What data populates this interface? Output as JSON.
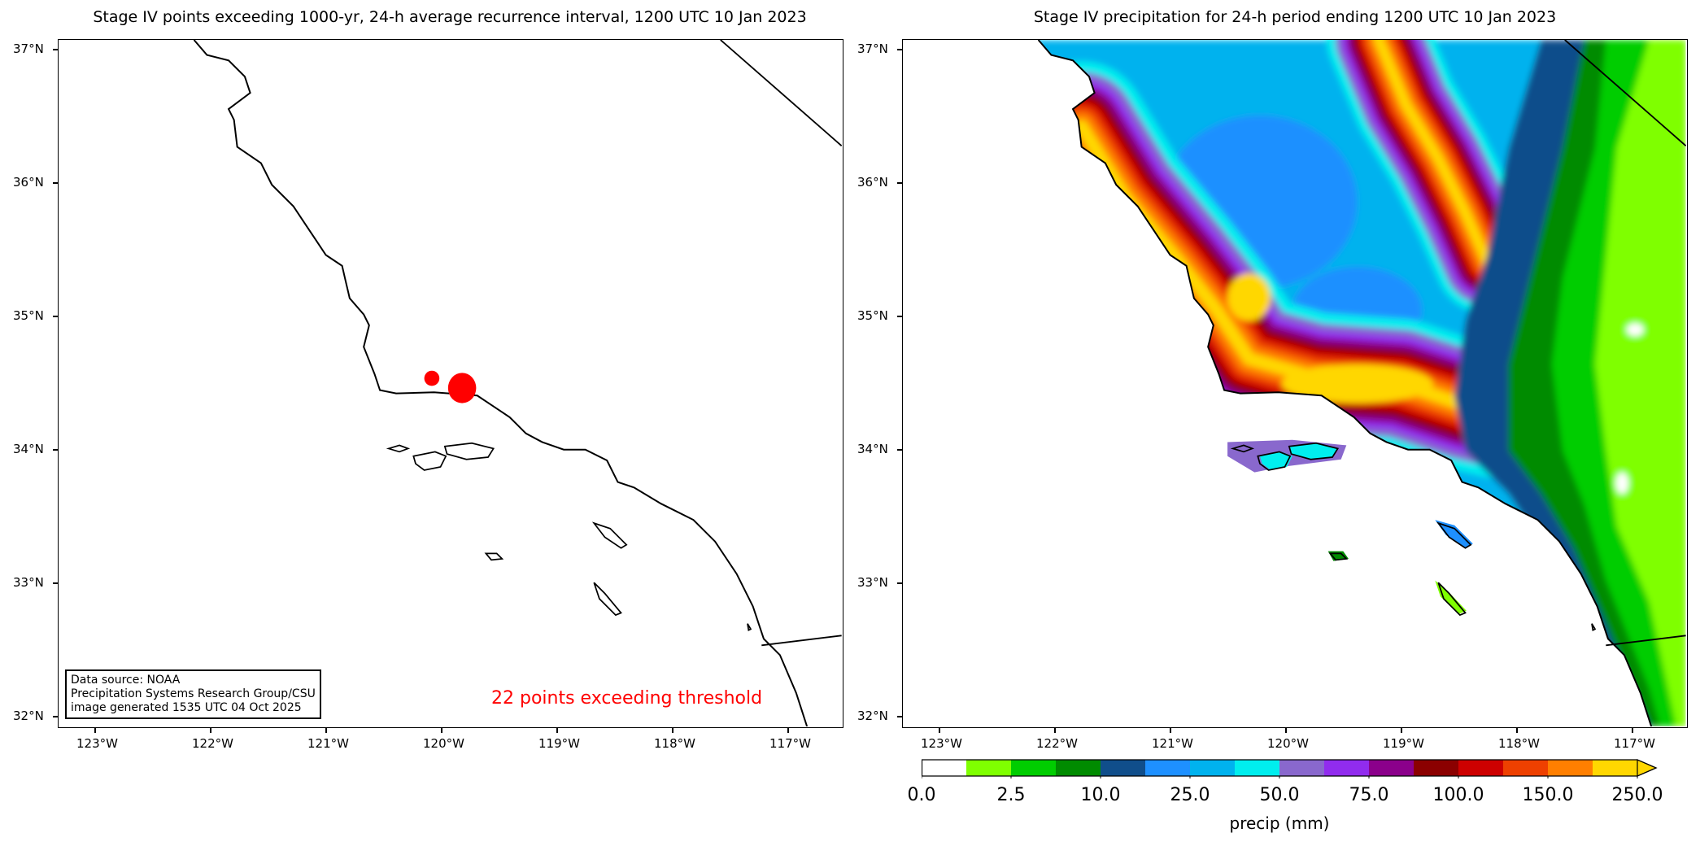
{
  "left_panel": {
    "title": "Stage IV points exceeding 1000-yr, 24-h average recurrence interval, 1200 UTC 10 Jan 2023",
    "source_lines": [
      "Data source: NOAA",
      "Precipitation Systems Research Group/CSU",
      "image generated 1535 UTC 04 Oct 2025"
    ],
    "count_text": "22 points exceeding threshold",
    "point_color": "#ff0000"
  },
  "right_panel": {
    "title": "Stage IV precipitation for 24-h period ending 1200 UTC 10 Jan 2023"
  },
  "map_extent": {
    "lon": [
      -123.32,
      -116.5
    ],
    "lat": [
      31.9,
      37.07
    ]
  },
  "lon_ticks": [
    "123°W",
    "122°W",
    "121°W",
    "120°W",
    "119°W",
    "118°W",
    "117°W"
  ],
  "lat_ticks": [
    "37°N",
    "36°N",
    "35°N",
    "34°N",
    "33°N",
    "32°N"
  ],
  "colorbar": {
    "label": "precip (mm)",
    "tick_labels": [
      "0.0",
      "2.5",
      "10.0",
      "25.0",
      "50.0",
      "75.0",
      "100.0",
      "150.0",
      "250.0"
    ],
    "colors": [
      "#ffffff",
      "#7fff00",
      "#00cd00",
      "#008b00",
      "#104e8b",
      "#1e90ff",
      "#00b2ee",
      "#00eeee",
      "#8968cd",
      "#912cee",
      "#8b008b",
      "#8b0000",
      "#cd0000",
      "#ee4000",
      "#ff7f00",
      "#ffd700"
    ],
    "extend": "max"
  }
}
